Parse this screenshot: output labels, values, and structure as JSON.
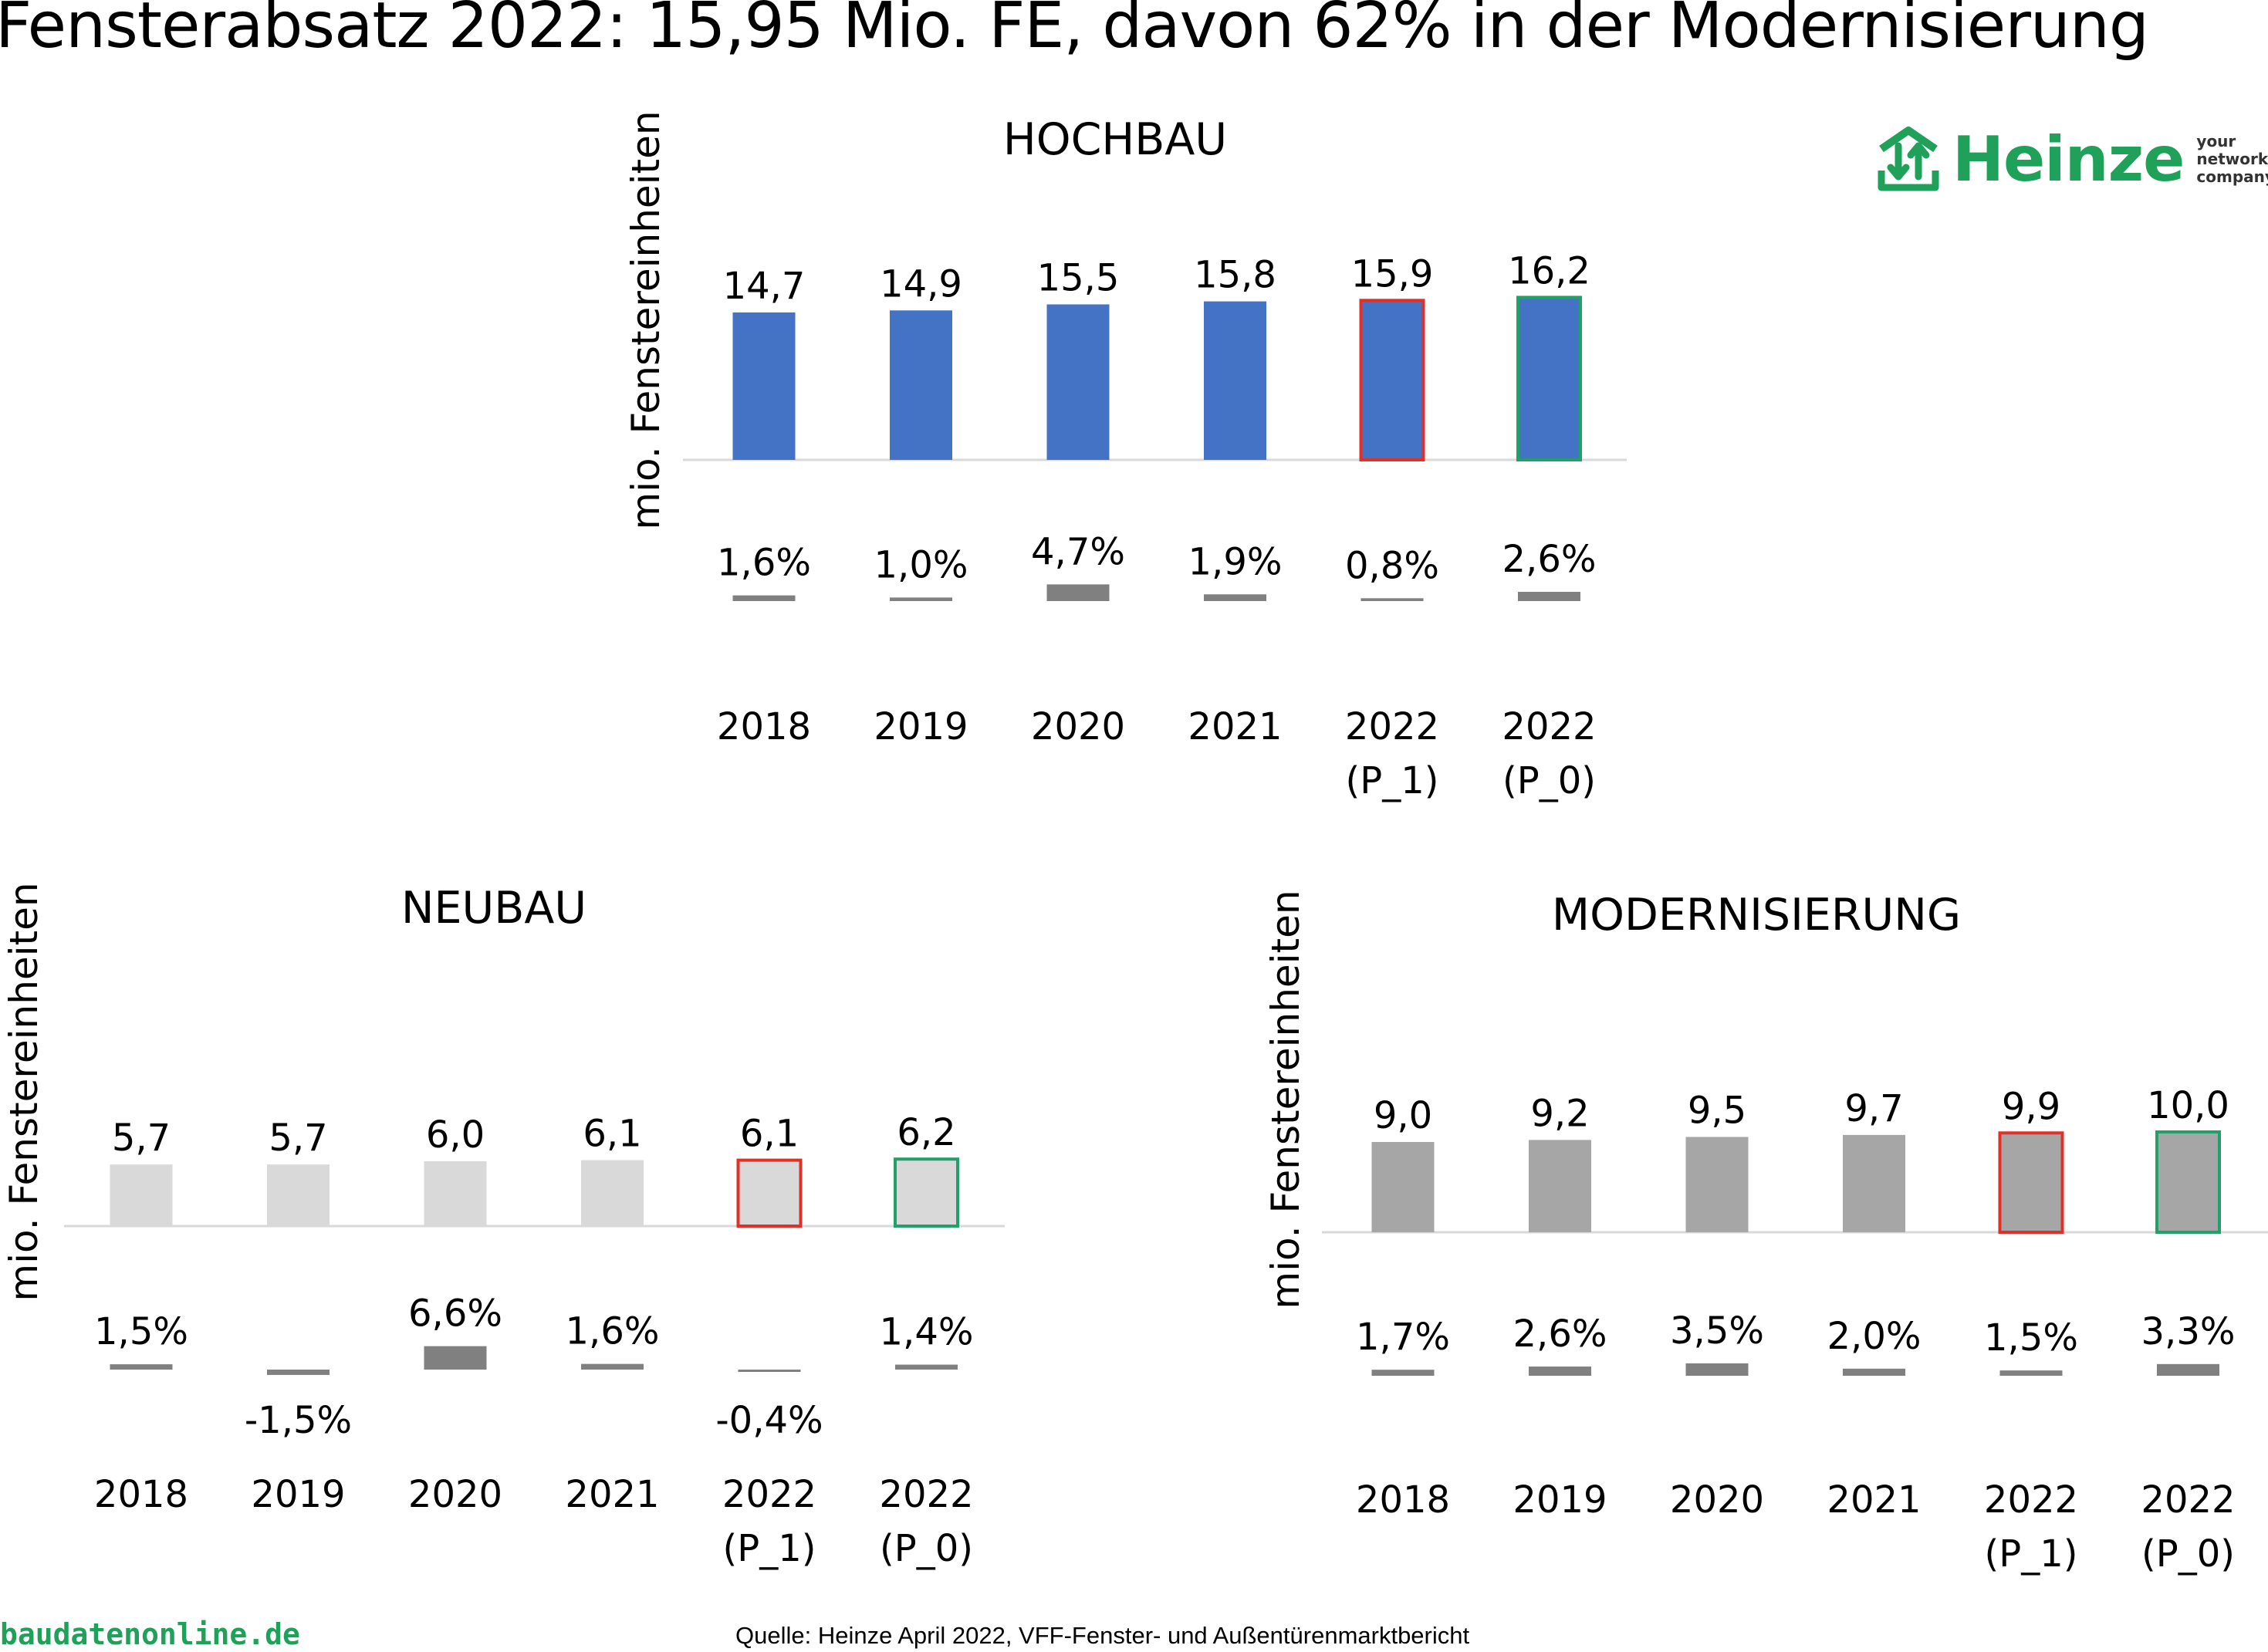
{
  "title": "Fensterabsatz 2022: 15,95 Mio. FE, davon 62% in der Modernisierung",
  "logo": {
    "word": "Heinze",
    "tagline": [
      "your",
      "networking",
      "company"
    ]
  },
  "footer": {
    "site": "baudatenonline.de",
    "source": "Quelle: Heinze April 2022, VFF-Fenster- und Außentürenmarktbericht"
  },
  "colors": {
    "hochbau_bar": "#4472c4",
    "neubau_bar": "#d9d9d9",
    "modern_bar": "#a6a6a6",
    "growth_bar": "#808080",
    "outline_p1": "#e0302a",
    "outline_p0": "#22a06a",
    "axis": "#d9d9d9"
  },
  "chart_data": [
    {
      "id": "hochbau",
      "type": "bar",
      "title": "HOCHBAU",
      "ylabel": "mio. Fenstereinheiten",
      "categories": [
        [
          "2018"
        ],
        [
          "2019"
        ],
        [
          "2020"
        ],
        [
          "2021"
        ],
        [
          "2022",
          "(P_1)"
        ],
        [
          "2022",
          "(P_0)"
        ]
      ],
      "values": [
        14.7,
        14.9,
        15.5,
        15.8,
        15.9,
        16.2
      ],
      "value_labels": [
        "14,7",
        "14,9",
        "15,5",
        "15,8",
        "15,9",
        "16,2"
      ],
      "growth": [
        1.6,
        1.0,
        4.7,
        1.9,
        0.8,
        2.6
      ],
      "growth_labels": [
        "1,6%",
        "1,0%",
        "4,7%",
        "1,9%",
        "0,8%",
        "2,6%"
      ],
      "highlight": [
        "",
        "",
        "",
        "",
        "p1",
        "p0"
      ]
    },
    {
      "id": "neubau",
      "type": "bar",
      "title": "NEUBAU",
      "ylabel": "mio. Fenstereinheiten",
      "categories": [
        [
          "2018"
        ],
        [
          "2019"
        ],
        [
          "2020"
        ],
        [
          "2021"
        ],
        [
          "2022",
          "(P_1)"
        ],
        [
          "2022",
          "(P_0)"
        ]
      ],
      "values": [
        5.7,
        5.7,
        6.0,
        6.1,
        6.1,
        6.2
      ],
      "value_labels": [
        "5,7",
        "5,7",
        "6,0",
        "6,1",
        "6,1",
        "6,2"
      ],
      "growth": [
        1.5,
        -1.5,
        6.6,
        1.6,
        -0.4,
        1.4
      ],
      "growth_labels": [
        "1,5%",
        "-1,5%",
        "6,6%",
        "1,6%",
        "-0,4%",
        "1,4%"
      ],
      "highlight": [
        "",
        "",
        "",
        "",
        "p1",
        "p0"
      ]
    },
    {
      "id": "modern",
      "type": "bar",
      "title": "MODERNISIERUNG",
      "ylabel": "mio. Fenstereinheiten",
      "categories": [
        [
          "2018"
        ],
        [
          "2019"
        ],
        [
          "2020"
        ],
        [
          "2021"
        ],
        [
          "2022",
          "(P_1)"
        ],
        [
          "2022",
          "(P_0)"
        ]
      ],
      "values": [
        9.0,
        9.2,
        9.5,
        9.7,
        9.9,
        10.0
      ],
      "value_labels": [
        "9,0",
        "9,2",
        "9,5",
        "9,7",
        "9,9",
        "10,0"
      ],
      "growth": [
        1.7,
        2.6,
        3.5,
        2.0,
        1.5,
        3.3
      ],
      "growth_labels": [
        "1,7%",
        "2,6%",
        "3,5%",
        "2,0%",
        "1,5%",
        "3,3%"
      ],
      "highlight": [
        "",
        "",
        "",
        "",
        "p1",
        "p0"
      ]
    }
  ]
}
